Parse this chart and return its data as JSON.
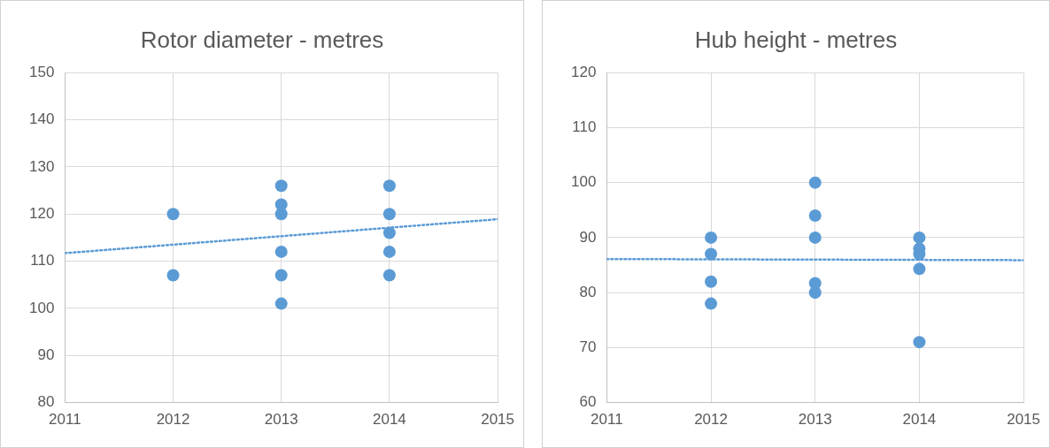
{
  "chart_data": [
    {
      "type": "scatter",
      "title": "Rotor diameter - metres",
      "xlim": [
        2011,
        2015
      ],
      "xticks": [
        2011,
        2012,
        2013,
        2014,
        2015
      ],
      "ylim": [
        80,
        150
      ],
      "yticks": [
        80,
        90,
        100,
        110,
        120,
        130,
        140,
        150
      ],
      "grid": true,
      "legend": false,
      "marker": "circle",
      "series": [
        {
          "type": "scatter",
          "color": "#5b9bd5",
          "x": [
            2012,
            2012,
            2013,
            2013,
            2013,
            2013,
            2013,
            2013,
            2014,
            2014,
            2014,
            2014,
            2014
          ],
          "values": [
            120,
            107,
            126,
            122,
            120,
            112,
            107,
            101,
            126,
            120,
            116,
            112,
            107
          ]
        },
        {
          "type": "line",
          "color": "#5b9bd5",
          "line_style": "dotted",
          "marker": "none",
          "x": [
            2011,
            2015
          ],
          "values": [
            111.7,
            118.9
          ]
        }
      ]
    },
    {
      "type": "scatter",
      "title": "Hub height - metres",
      "xlim": [
        2011,
        2015
      ],
      "xticks": [
        2011,
        2012,
        2013,
        2014,
        2015
      ],
      "ylim": [
        60,
        120
      ],
      "yticks": [
        60,
        70,
        80,
        90,
        100,
        110,
        120
      ],
      "grid": true,
      "legend": false,
      "marker": "circle",
      "series": [
        {
          "type": "scatter",
          "color": "#5b9bd5",
          "x": [
            2012,
            2012,
            2012,
            2012,
            2013,
            2013,
            2013,
            2013,
            2013,
            2014,
            2014,
            2014,
            2014,
            2014
          ],
          "values": [
            90,
            87,
            82,
            78,
            100,
            94,
            90,
            81.7,
            80,
            90,
            88,
            87,
            84.3,
            71
          ]
        },
        {
          "type": "line",
          "color": "#5b9bd5",
          "line_style": "dotted",
          "marker": "none",
          "x": [
            2011,
            2015
          ],
          "values": [
            86.1,
            85.9
          ]
        }
      ]
    }
  ]
}
